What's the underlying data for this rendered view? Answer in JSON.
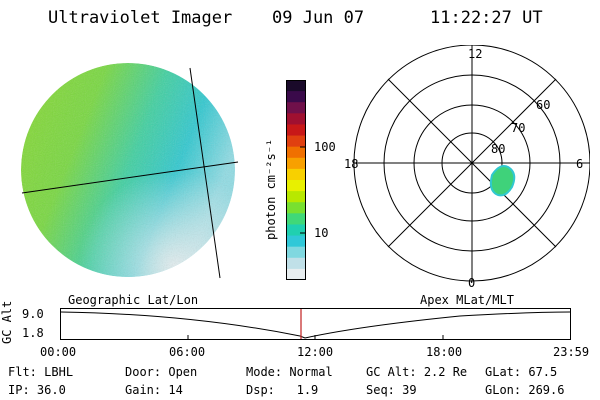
{
  "header": {
    "instrument": "Ultraviolet Imager",
    "date": "09 Jun 07",
    "time": "11:22:27 UT"
  },
  "colorbar": {
    "unit_label": "photon cm⁻²s⁻¹",
    "ticks": [
      "100",
      "10"
    ],
    "colors": [
      "#1a0a2a",
      "#3a0a4a",
      "#70104a",
      "#a01030",
      "#c81818",
      "#e04010",
      "#f07000",
      "#f8a000",
      "#f8d000",
      "#e8f000",
      "#b8e800",
      "#78e030",
      "#40d878",
      "#20d0b0",
      "#30c8d8",
      "#80d8e0",
      "#c0e0e8",
      "#e8eef0"
    ]
  },
  "polar": {
    "hour_labels": {
      "top": "12",
      "left": "18",
      "right": "6",
      "bottom": "0"
    },
    "lat_labels": [
      "60",
      "70",
      "80"
    ]
  },
  "timeline": {
    "y_axis_label": "GC Alt",
    "y_ticks": [
      "9.0",
      "1.8"
    ],
    "left_caption": "Geographic Lat/Lon",
    "right_caption": "Apex MLat/MLT",
    "x_ticks": [
      "00:00",
      "06:00",
      "12:00",
      "18:00",
      "23:59"
    ]
  },
  "status": {
    "row1": [
      {
        "label": "Flt:",
        "value": "LBHL"
      },
      {
        "label": "Door:",
        "value": "Open"
      },
      {
        "label": "Mode:",
        "value": "Normal"
      },
      {
        "label": "GC Alt:",
        "value": "2.2 Re"
      },
      {
        "label": "GLat:",
        "value": "67.5"
      }
    ],
    "row2": [
      {
        "label": "IP:",
        "value": "36.0"
      },
      {
        "label": "Gain:",
        "value": "14"
      },
      {
        "label": "Dsp:",
        "value": "1.9"
      },
      {
        "label": "Seq:",
        "value": "39"
      },
      {
        "label": "GLon:",
        "value": "269.6"
      }
    ]
  }
}
